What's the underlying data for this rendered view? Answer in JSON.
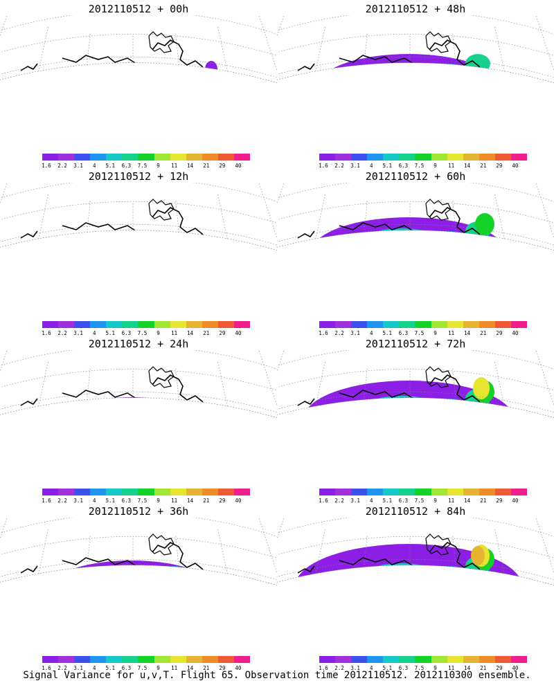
{
  "colorbar": {
    "colors": [
      "#8c1ee6",
      "#a030dc",
      "#3c50f0",
      "#1e96f0",
      "#14c8c8",
      "#14d28c",
      "#14d228",
      "#a0e632",
      "#e6e632",
      "#e6b432",
      "#f08c28",
      "#f05a32",
      "#f01e8c"
    ],
    "tick_labels": [
      "1.6",
      "2.2",
      "3.1",
      "4",
      "5.1",
      "6.3",
      "7.5",
      "9",
      "11",
      "14",
      "21",
      "29",
      "40"
    ]
  },
  "panels": [
    {
      "title": "2012110512 + 00h",
      "level": 0
    },
    {
      "title": "2012110512 + 48h",
      "level": 4
    },
    {
      "title": "2012110512 + 12h",
      "level": 1
    },
    {
      "title": "2012110512 + 60h",
      "level": 5
    },
    {
      "title": "2012110512 + 24h",
      "level": 2
    },
    {
      "title": "2012110512 + 72h",
      "level": 6
    },
    {
      "title": "2012110512 + 36h",
      "level": 3
    },
    {
      "title": "2012110512 + 84h",
      "level": 7
    }
  ],
  "footer": "Signal Variance for u,v,T. Flight 65. Observation time 2012110512. 2012110300 ensemble."
}
